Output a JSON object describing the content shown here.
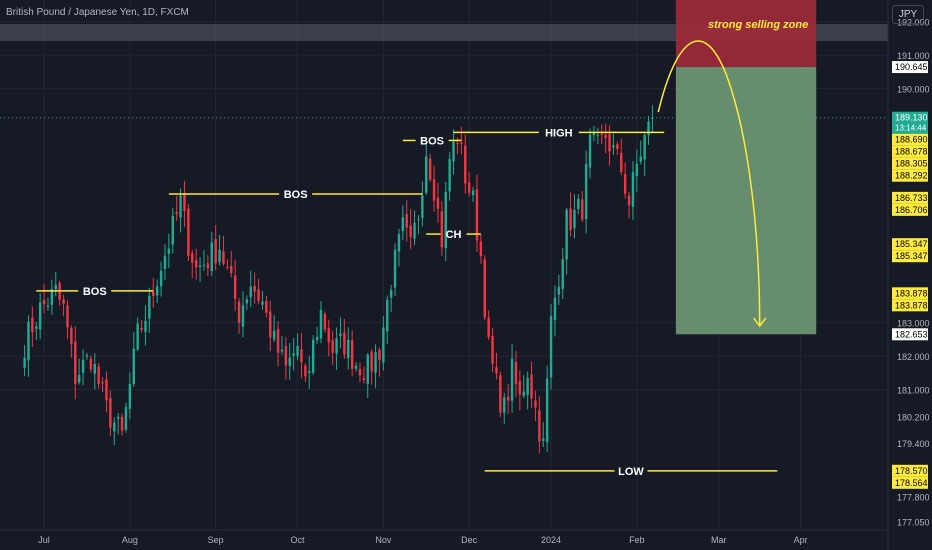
{
  "header": {
    "title": "British Pound / Japanese Yen, 1D, FXCM",
    "currency_button": "JPY"
  },
  "colors": {
    "background": "#161a25",
    "bull": "#22ab94",
    "bear": "#f23645",
    "annotation": "#ffeb3b",
    "grid": "#242733",
    "axis_text": "#b2b5be"
  },
  "chart_data": {
    "type": "candlestick",
    "title": "British Pound / Japanese Yen, 1D, FXCM",
    "ylim": [
      176.8,
      192.65
    ],
    "yticks": [
      177.05,
      177.8,
      178.57,
      179.4,
      180.2,
      181.0,
      182.0,
      182.653,
      183.0,
      183.878,
      185.347,
      186.706,
      186.733,
      188.292,
      188.305,
      188.678,
      188.69,
      189.13,
      190.0,
      190.645,
      191.0,
      192.0
    ],
    "ytick_labels": [
      "177.050",
      "177.800",
      "178.570",
      "179.400",
      "180.200",
      "181.000",
      "182.000",
      "182.653",
      "183.000",
      "183.878",
      "185.347",
      "186.706",
      "186.733",
      "188.292",
      "188.305",
      "188.678",
      "188.690",
      "189.130",
      "190.000",
      "190.645",
      "191.000",
      "192.000"
    ],
    "price_tags": [
      {
        "value": 190.645,
        "text": "190.645",
        "style": "white"
      },
      {
        "value": 189.13,
        "text": "189.130",
        "sub": "13:14:44",
        "style": "green"
      },
      {
        "value": 188.69,
        "text": "188.690",
        "style": "yellow"
      },
      {
        "value": 188.678,
        "text": "188.678",
        "style": "yellow"
      },
      {
        "value": 188.305,
        "text": "188.305",
        "style": "yellow"
      },
      {
        "value": 188.292,
        "text": "188.292",
        "style": "yellow"
      },
      {
        "value": 186.733,
        "text": "186.733",
        "style": "yellow"
      },
      {
        "value": 186.706,
        "text": "186.706",
        "style": "yellow"
      },
      {
        "value": 185.347,
        "text": "185.347",
        "style": "yellow"
      },
      {
        "value": 185.347,
        "text": "185.347",
        "style": "yellow"
      },
      {
        "value": 183.878,
        "text": "183.878",
        "style": "yellow"
      },
      {
        "value": 183.878,
        "text": "183.878",
        "style": "yellow"
      },
      {
        "value": 182.653,
        "text": "182.653",
        "style": "white"
      },
      {
        "value": 178.57,
        "text": "178.570",
        "style": "yellow"
      },
      {
        "value": 178.564,
        "text": "178.564",
        "style": "yellow"
      }
    ],
    "x_range": [
      -6.3,
      221.4
    ],
    "x_labels": [
      {
        "text": "Jul",
        "index": 5
      },
      {
        "text": "Aug",
        "index": 27
      },
      {
        "text": "Sep",
        "index": 49
      },
      {
        "text": "Oct",
        "index": 70
      },
      {
        "text": "Nov",
        "index": 92
      },
      {
        "text": "Dec",
        "index": 114
      },
      {
        "text": "2024",
        "index": 135
      },
      {
        "text": "Feb",
        "index": 157
      },
      {
        "text": "Mar",
        "index": 178
      },
      {
        "text": "Apr",
        "index": 199
      }
    ],
    "ohlc_anchors": [
      [
        0,
        182.4
      ],
      [
        4,
        183.4
      ],
      [
        8,
        183.9
      ],
      [
        10,
        183.4
      ],
      [
        13,
        181.4
      ],
      [
        17,
        182.0
      ],
      [
        21,
        180.4
      ],
      [
        25,
        179.6
      ],
      [
        29,
        182.6
      ],
      [
        32,
        183.5
      ],
      [
        34,
        184.4
      ],
      [
        37,
        185.4
      ],
      [
        40,
        186.6
      ],
      [
        42,
        185.4
      ],
      [
        44,
        184.6
      ],
      [
        47,
        184.9
      ],
      [
        50,
        185.3
      ],
      [
        52,
        184.5
      ],
      [
        55,
        183.3
      ],
      [
        58,
        184.2
      ],
      [
        61,
        183.6
      ],
      [
        64,
        182.4
      ],
      [
        67,
        181.6
      ],
      [
        70,
        182.3
      ],
      [
        72,
        181.0
      ],
      [
        74,
        182.3
      ],
      [
        76,
        183.3
      ],
      [
        79,
        182.2
      ],
      [
        82,
        182.4
      ],
      [
        85,
        181.8
      ],
      [
        88,
        181.6
      ],
      [
        91,
        182.2
      ],
      [
        94,
        184.3
      ],
      [
        97,
        185.8
      ],
      [
        99,
        185.2
      ],
      [
        101,
        186.3
      ],
      [
        103,
        188.2
      ],
      [
        105,
        187.1
      ],
      [
        107,
        185.5
      ],
      [
        109,
        187.9
      ],
      [
        111,
        188.6
      ],
      [
        113,
        187.4
      ],
      [
        115,
        186.6
      ],
      [
        117,
        185.0
      ],
      [
        119,
        182.2
      ],
      [
        121,
        181.1
      ],
      [
        123,
        180.4
      ],
      [
        125,
        181.5
      ],
      [
        127,
        180.7
      ],
      [
        129,
        181.6
      ],
      [
        131,
        180.4
      ],
      [
        133,
        179.3
      ],
      [
        135,
        183.0
      ],
      [
        137,
        184.5
      ],
      [
        139,
        186.0
      ],
      [
        141,
        186.2
      ],
      [
        143,
        186.5
      ],
      [
        145,
        188.3
      ],
      [
        147,
        188.2
      ],
      [
        149,
        188.6
      ],
      [
        151,
        188.1
      ],
      [
        153,
        187.6
      ],
      [
        155,
        186.6
      ],
      [
        157,
        187.7
      ],
      [
        159,
        188.5
      ],
      [
        161,
        189.1
      ]
    ],
    "ohlc_last_index": 161,
    "annotations": [
      {
        "text": "BOS",
        "kind": "level",
        "value": 183.95,
        "x_from": 3,
        "x_to": 33
      },
      {
        "text": "BOS",
        "kind": "level",
        "value": 186.85,
        "x_from": 37,
        "x_to": 102
      },
      {
        "text": "BOS",
        "kind": "level",
        "value": 188.45,
        "x_from": 97,
        "x_to": 112
      },
      {
        "text": "CH",
        "kind": "level",
        "value": 185.65,
        "x_from": 103,
        "x_to": 117
      },
      {
        "text": "HIGH",
        "kind": "level",
        "value": 188.69,
        "x_from": 110,
        "x_to": 164
      },
      {
        "text": "LOW",
        "kind": "level",
        "value": 178.57,
        "x_from": 118,
        "x_to": 193
      },
      {
        "text": "strong selling zone",
        "kind": "zone",
        "y_from": 190.645,
        "y_to": 192.65,
        "x_from": 167,
        "x_to": 203,
        "color": "#a12a3a"
      },
      {
        "text": "",
        "kind": "zone",
        "y_from": 182.653,
        "y_to": 190.645,
        "x_from": 167,
        "x_to": 203,
        "color": "#6f9a76"
      }
    ]
  }
}
